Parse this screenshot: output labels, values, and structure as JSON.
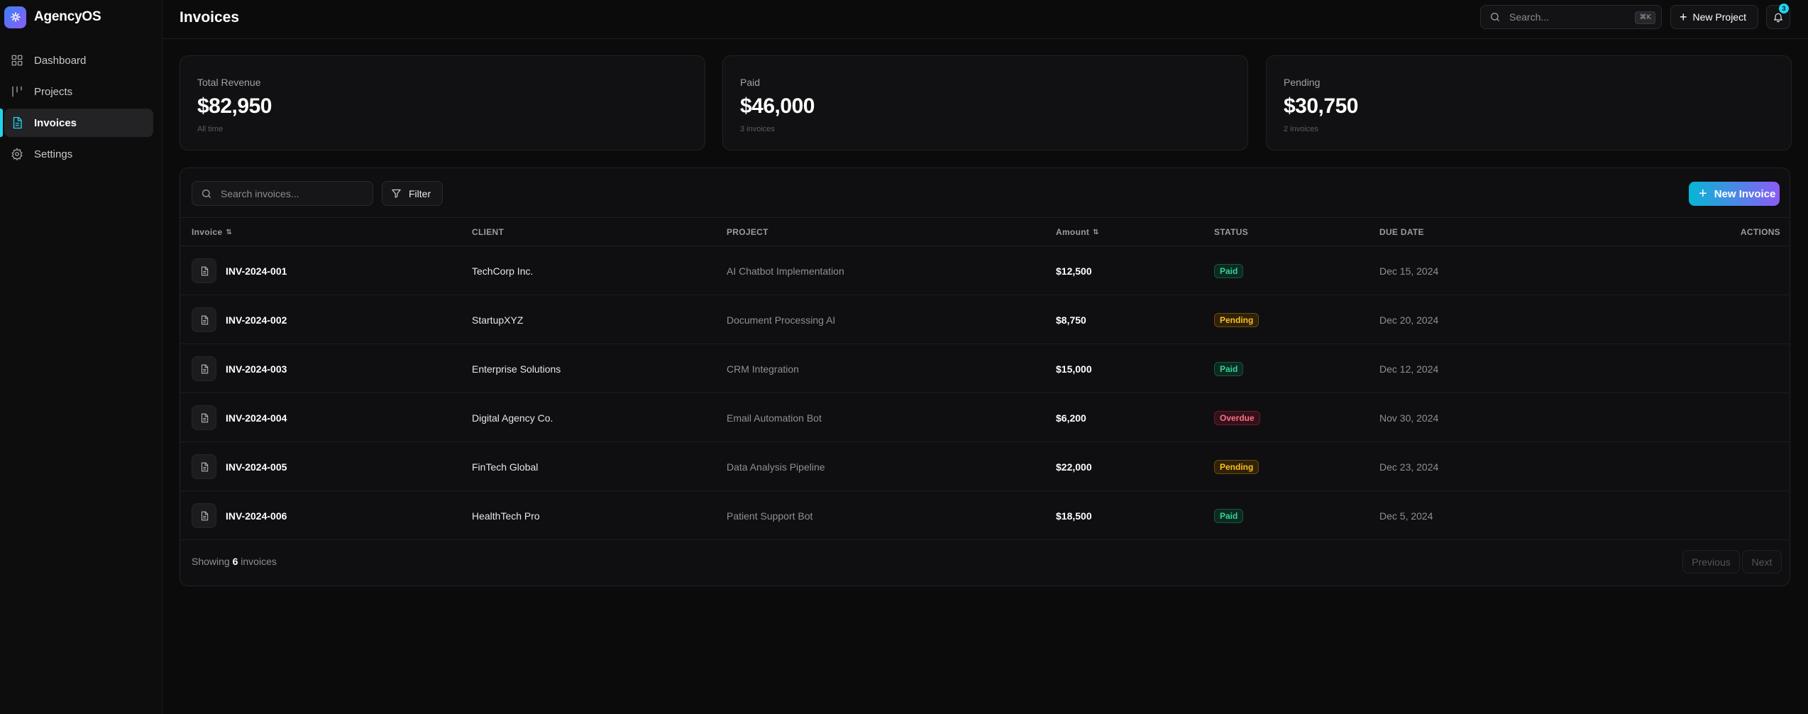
{
  "brand": {
    "name": "AgencyOS"
  },
  "sidebar": {
    "items": [
      {
        "label": "Dashboard",
        "icon": "dashboard-icon",
        "active": false
      },
      {
        "label": "Projects",
        "icon": "projects-icon",
        "active": false
      },
      {
        "label": "Invoices",
        "icon": "invoices-icon",
        "active": true
      },
      {
        "label": "Settings",
        "icon": "settings-icon",
        "active": false
      }
    ]
  },
  "header": {
    "title": "Invoices",
    "search_placeholder": "Search...",
    "search_shortcut": "⌘K",
    "new_project_label": "New Project",
    "notification_count": "3"
  },
  "stats": [
    {
      "label": "Total Revenue",
      "value": "$82,950",
      "sub": "All time"
    },
    {
      "label": "Paid",
      "value": "$46,000",
      "sub": "3 invoices"
    },
    {
      "label": "Pending",
      "value": "$30,750",
      "sub": "2 invoices"
    }
  ],
  "toolbar": {
    "search_placeholder": "Search invoices...",
    "filter_label": "Filter",
    "new_invoice_label": "New Invoice"
  },
  "table": {
    "columns": {
      "invoice": "Invoice",
      "client": "CLIENT",
      "project": "PROJECT",
      "amount": "Amount",
      "status": "STATUS",
      "due_date": "DUE DATE",
      "actions": "ACTIONS"
    },
    "rows": [
      {
        "id": "INV-2024-001",
        "client": "TechCorp Inc.",
        "project": "AI Chatbot Implementation",
        "amount": "$12,500",
        "status": "Paid",
        "due": "Dec 15, 2024"
      },
      {
        "id": "INV-2024-002",
        "client": "StartupXYZ",
        "project": "Document Processing AI",
        "amount": "$8,750",
        "status": "Pending",
        "due": "Dec 20, 2024"
      },
      {
        "id": "INV-2024-003",
        "client": "Enterprise Solutions",
        "project": "CRM Integration",
        "amount": "$15,000",
        "status": "Paid",
        "due": "Dec 12, 2024"
      },
      {
        "id": "INV-2024-004",
        "client": "Digital Agency Co.",
        "project": "Email Automation Bot",
        "amount": "$6,200",
        "status": "Overdue",
        "due": "Nov 30, 2024"
      },
      {
        "id": "INV-2024-005",
        "client": "FinTech Global",
        "project": "Data Analysis Pipeline",
        "amount": "$22,000",
        "status": "Pending",
        "due": "Dec 23, 2024"
      },
      {
        "id": "INV-2024-006",
        "client": "HealthTech Pro",
        "project": "Patient Support Bot",
        "amount": "$18,500",
        "status": "Paid",
        "due": "Dec 5, 2024"
      }
    ]
  },
  "footer": {
    "showing_prefix": "Showing",
    "showing_count": "6",
    "showing_suffix": "invoices",
    "previous_label": "Previous",
    "next_label": "Next"
  },
  "colors": {
    "accent": "#22d3ee",
    "gradient_start": "#06b6d4",
    "gradient_end": "#8b5cf6",
    "paid": "#34d399",
    "pending": "#fbbf24",
    "overdue": "#fb7185"
  }
}
